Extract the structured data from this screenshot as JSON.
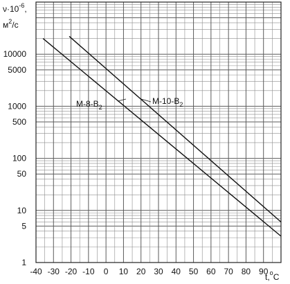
{
  "chart_data": {
    "type": "line",
    "ylabel": "ν·10",
    "ylabel_exponent": "-6",
    "yunit": "м",
    "yunit_exponent": "2",
    "yunit_suffix": "/с",
    "xlabel": "t,",
    "xlabel_degree": "o",
    "xlabel_unit": "C",
    "y_scale": "log",
    "ylim": [
      1,
      100000
    ],
    "xlim": [
      -40,
      100
    ],
    "x_ticks": [
      -40,
      -30,
      -20,
      -10,
      0,
      10,
      20,
      30,
      40,
      50,
      60,
      70,
      80,
      90
    ],
    "y_ticks": [
      1,
      5,
      10,
      50,
      100,
      500,
      1000,
      5000,
      10000
    ],
    "grid": true,
    "series": [
      {
        "name": "M-8-B",
        "name_subscript": "2",
        "x": [
          -36,
          100
        ],
        "y": [
          20000,
          3.2
        ]
      },
      {
        "name": "M-10-B",
        "name_subscript": "2",
        "x": [
          -21,
          100
        ],
        "y": [
          22000,
          6.0
        ]
      }
    ]
  }
}
